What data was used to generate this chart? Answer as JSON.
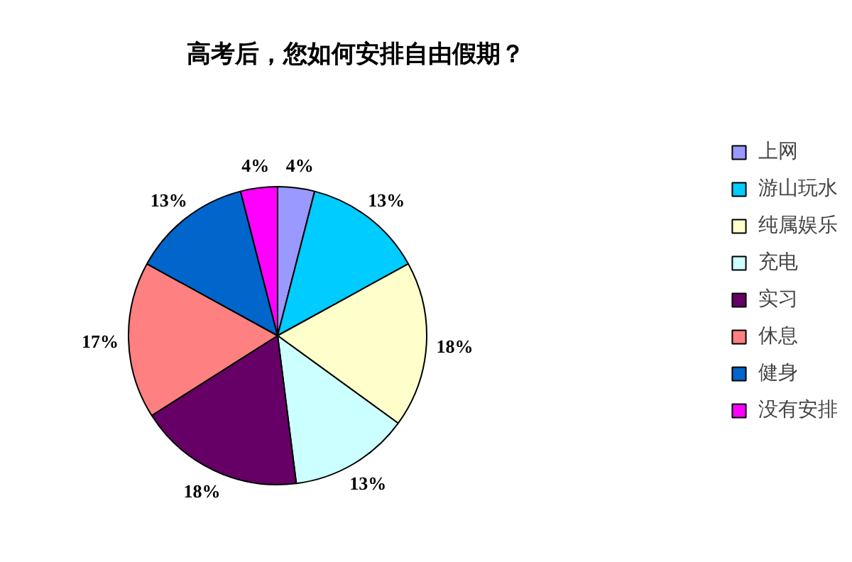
{
  "chart_data": {
    "type": "pie",
    "title": "高考后，您如何安排自由假期？",
    "categories": [
      "上网",
      "游山玩水",
      "纯属娱乐",
      "充电",
      "实习",
      "休息",
      "健身",
      "没有安排"
    ],
    "values": [
      4,
      13,
      18,
      13,
      18,
      17,
      13,
      4
    ],
    "value_labels": [
      "4%",
      "13%",
      "18%",
      "13%",
      "18%",
      "17%",
      "13%",
      "4%"
    ],
    "colors": [
      "#9999ff",
      "#00ccff",
      "#ffffcc",
      "#ccffff",
      "#660066",
      "#ff8080",
      "#0066cc",
      "#ff00ff"
    ],
    "legend": "right"
  }
}
